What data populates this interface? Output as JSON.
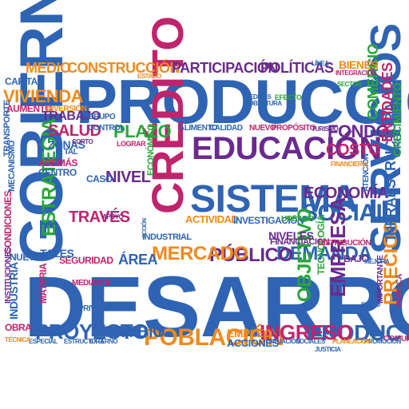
{
  "palette": {
    "blue": "#2e64b3",
    "magenta": "#c0246d",
    "purple": "#6a2a8e",
    "green": "#29a63b",
    "orange": "#f08a1c",
    "teal": "#1a9aa0"
  },
  "words": [
    {
      "text": "DESARROLLO",
      "color": "blue"
    },
    {
      "text": "PRODUCCIÓN",
      "color": "blue"
    },
    {
      "text": "GOBIERNO",
      "color": "blue"
    },
    {
      "text": "SISTEMA",
      "color": "blue"
    },
    {
      "text": "EDUCACIÓN",
      "color": "purple"
    },
    {
      "text": "CRÉDITO",
      "color": "magenta"
    },
    {
      "text": "SERVICIOS",
      "color": "blue"
    },
    {
      "text": "SOCIAL",
      "color": "blue"
    },
    {
      "text": "POBLACIÓN",
      "color": "orange"
    },
    {
      "text": "PROYECTO",
      "color": "blue"
    },
    {
      "text": "PRODUCTO",
      "color": "blue"
    },
    {
      "text": "INGRESO",
      "color": "magenta"
    },
    {
      "text": "DEMANDA",
      "color": "blue"
    },
    {
      "text": "PÚBLICO",
      "color": "purple"
    },
    {
      "text": "MERCADO",
      "color": "orange"
    },
    {
      "text": "ESTRATEGIA",
      "color": "green"
    },
    {
      "text": "VIVIENDA",
      "color": "orange"
    },
    {
      "text": "MEDIO",
      "color": "orange"
    },
    {
      "text": "CONSTRUCCIÓN",
      "color": "orange"
    },
    {
      "text": "PARTICIPACIÓN",
      "color": "purple"
    },
    {
      "text": "POLÍTICAS",
      "color": "purple"
    },
    {
      "text": "SALUD",
      "color": "magenta"
    },
    {
      "text": "TRABAJO",
      "color": "purple"
    },
    {
      "text": "PLAZO",
      "color": "green"
    },
    {
      "text": "FONDO",
      "color": "purple"
    },
    {
      "text": "COSTO",
      "color": "magenta"
    },
    {
      "text": "ECONOMÍA",
      "color": "purple"
    },
    {
      "text": "NIVEL",
      "color": "purple"
    },
    {
      "text": "TRAVÉS",
      "color": "magenta"
    },
    {
      "text": "EMPRESA",
      "color": "purple"
    },
    {
      "text": "CAMBIO",
      "color": "blue"
    },
    {
      "text": "OBJETIVO",
      "color": "green"
    },
    {
      "text": "PRECIOS",
      "color": "orange"
    },
    {
      "text": "INFRAESTRUCTURA",
      "color": "blue"
    },
    {
      "text": "COMERCIO",
      "color": "green"
    },
    {
      "text": "ENTIDADES",
      "color": "magenta"
    },
    {
      "text": "CRECIMIENTO",
      "color": "green"
    },
    {
      "text": "INDUSTRIA",
      "color": "blue"
    },
    {
      "text": "EMPLEO",
      "color": "orange"
    },
    {
      "text": "ACCIONES",
      "color": "blue"
    },
    {
      "text": "CAPITAL",
      "color": "blue"
    },
    {
      "text": "BIENES",
      "color": "orange"
    },
    {
      "text": "ÁREA",
      "color": "blue"
    },
    {
      "text": "NIVELES",
      "color": "purple"
    },
    {
      "text": "TALES",
      "color": "blue"
    },
    {
      "text": "SEGURIDAD",
      "color": "magenta"
    },
    {
      "text": "NUEVA",
      "color": "blue"
    },
    {
      "text": "CONDICIONES",
      "color": "magenta"
    },
    {
      "text": "MECANISMO",
      "color": "blue"
    },
    {
      "text": "TRANSPORTE",
      "color": "blue"
    },
    {
      "text": "AUMENTO",
      "color": "magenta"
    },
    {
      "text": "ADEMÁS",
      "color": "magenta"
    },
    {
      "text": "CENTRO",
      "color": "blue"
    },
    {
      "text": "ZONAS",
      "color": "blue"
    },
    {
      "text": "CASO",
      "color": "blue"
    },
    {
      "text": "INDUSTRIAL",
      "color": "blue"
    },
    {
      "text": "ACTIVIDAD",
      "color": "orange"
    },
    {
      "text": "INVESTIGACIÓN",
      "color": "blue"
    },
    {
      "text": "FINANCIACIÓN",
      "color": "purple"
    },
    {
      "text": "BAJO",
      "color": "purple"
    },
    {
      "text": "ALIMENTO",
      "color": "blue"
    },
    {
      "text": "CALIDAD",
      "color": "blue"
    },
    {
      "text": "NUEVO",
      "color": "magenta"
    },
    {
      "text": "PROPÓSITO",
      "color": "magenta"
    },
    {
      "text": "INVERSIÓN",
      "color": "orange"
    },
    {
      "text": "CONTROL",
      "color": "blue"
    },
    {
      "text": "GRUPO",
      "color": "blue"
    },
    {
      "text": "ATENCIÓN",
      "color": "blue"
    },
    {
      "text": "URBANO",
      "color": "green"
    },
    {
      "text": "PRIVADO",
      "color": "blue"
    },
    {
      "text": "MATERIA",
      "color": "magenta"
    },
    {
      "text": "ECONÓMICO",
      "color": "green"
    },
    {
      "text": "TECNOLOGÍA",
      "color": "green"
    },
    {
      "text": "OBRA",
      "color": "magenta"
    },
    {
      "text": "MEDIANTE",
      "color": "magenta"
    },
    {
      "text": "DISTRIBUCIÓN",
      "color": "magenta"
    },
    {
      "text": "COMUNIDAD",
      "color": "magenta"
    },
    {
      "text": "PÚBLICA",
      "color": "magenta"
    },
    {
      "text": "IMPORTANTE",
      "color": "purple"
    },
    {
      "text": "INSTITUCIONES",
      "color": "purple"
    },
    {
      "text": "ESPECIAL",
      "color": "blue"
    },
    {
      "text": "ESTRUCTURA",
      "color": "blue"
    },
    {
      "text": "EXTERNO",
      "color": "blue"
    },
    {
      "text": "SITUACIÓN",
      "color": "blue"
    },
    {
      "text": "SOCIALES",
      "color": "blue"
    },
    {
      "text": "PROMOCIÓN",
      "color": "blue"
    },
    {
      "text": "PLANEACIÓN",
      "color": "orange"
    },
    {
      "text": "INTEGRACIÓN",
      "color": "magenta"
    },
    {
      "text": "MEDIDAS",
      "color": "blue"
    },
    {
      "text": "COBERTURA",
      "color": "blue"
    },
    {
      "text": "EFECTO",
      "color": "green"
    },
    {
      "text": "LOGRAR",
      "color": "magenta"
    },
    {
      "text": "CORTO",
      "color": "purple"
    },
    {
      "text": "TAL",
      "color": "blue"
    },
    {
      "text": "LÍNEA",
      "color": "blue"
    },
    {
      "text": "VEZ",
      "color": "blue"
    },
    {
      "text": "TURISMO",
      "color": "purple"
    },
    {
      "text": "ESTADO",
      "color": "orange"
    },
    {
      "text": "SECTOR",
      "color": "green"
    },
    {
      "text": "FINANCIERO",
      "color": "orange"
    },
    {
      "text": "TÉCNICA",
      "color": "orange"
    },
    {
      "text": "ACCIÓN",
      "color": "blue"
    },
    {
      "text": "APOYO",
      "color": "purple"
    },
    {
      "text": "SALTO",
      "color": "blue"
    },
    {
      "text": "MEJORA",
      "color": "blue"
    },
    {
      "text": "JUSTICIA",
      "color": "blue"
    }
  ]
}
